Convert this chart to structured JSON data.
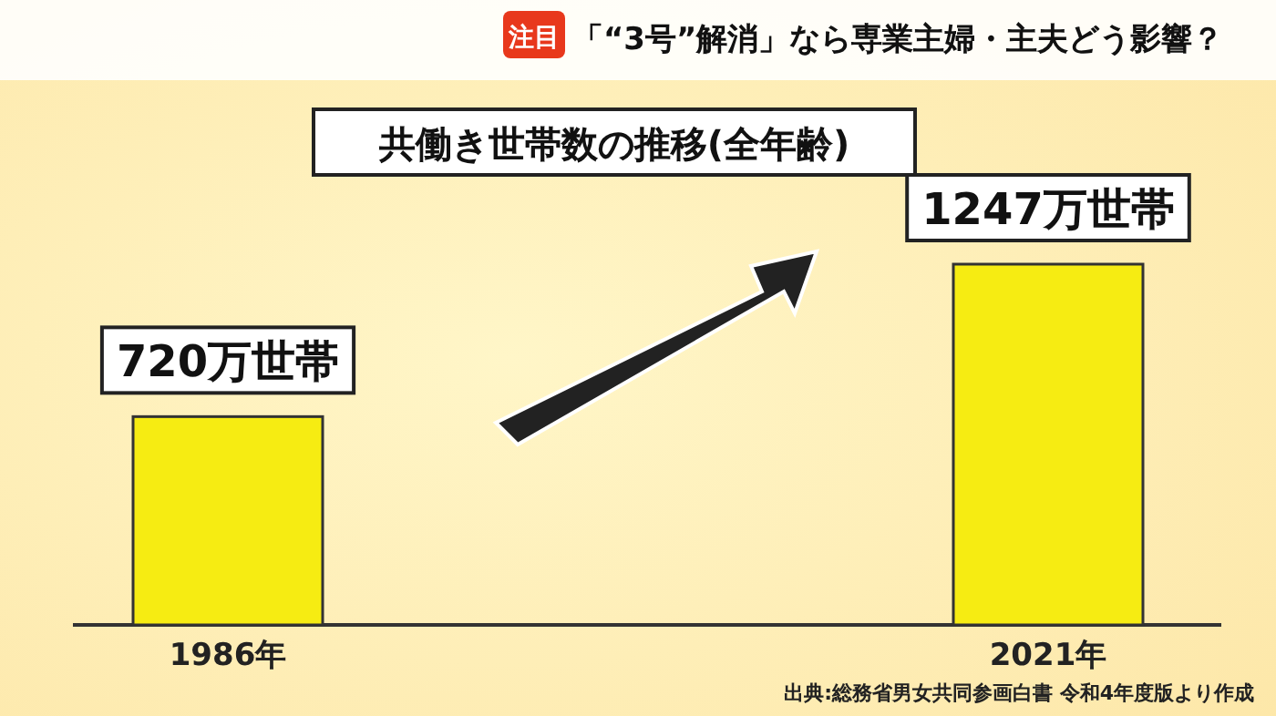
{
  "chart_data": {
    "type": "bar",
    "title": "「“3号”解消」なら専業主婦・主夫どう影響？",
    "subtitle": "共働き世帯数の推移(全年齢)",
    "annotations": [
      "注目",
      "出典:総務省男女共同参画白書 令和4年度版より作成"
    ],
    "categories": [
      "1986年",
      "2021年"
    ],
    "values": [
      720,
      1247
    ],
    "color": "#f6ec12",
    "value_labels": [
      "720万世帯",
      "1247万世帯"
    ]
  }
}
